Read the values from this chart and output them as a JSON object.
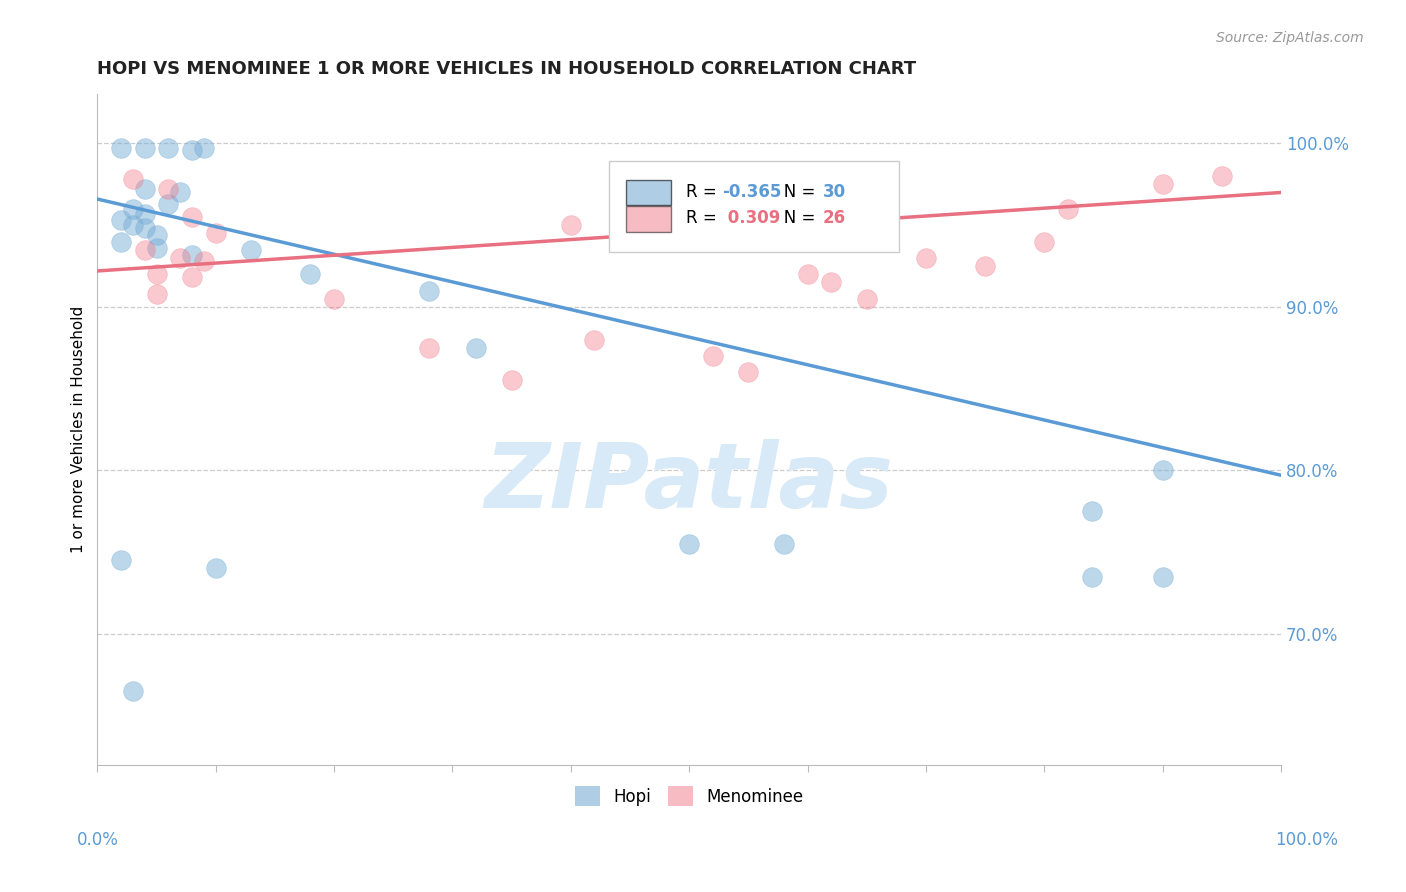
{
  "title": "HOPI VS MENOMINEE 1 OR MORE VEHICLES IN HOUSEHOLD CORRELATION CHART",
  "source": "Source: ZipAtlas.com",
  "ylabel": "1 or more Vehicles in Household",
  "ytick_values": [
    0.7,
    0.8,
    0.9,
    1.0
  ],
  "ytick_labels": [
    "70.0%",
    "80.0%",
    "90.0%",
    "100.0%"
  ],
  "hopi_R": -0.365,
  "hopi_N": 30,
  "menominee_R": 0.309,
  "menominee_N": 26,
  "hopi_color": "#7aaed6",
  "menominee_color": "#f07a88",
  "hopi_line_color": "#5b9bd5",
  "menominee_line_color": "#e87080",
  "axis_label_color": "#5b9bd5",
  "title_color": "#222222",
  "source_color": "#999999",
  "watermark_text": "ZIPatlas",
  "watermark_color": "#d8eaf7",
  "background_color": "#ffffff",
  "grid_color": "#cccccc",
  "xlim": [
    0.0,
    1.0
  ],
  "ylim": [
    0.62,
    1.03
  ],
  "hopi_scatter_x": [
    0.02,
    0.04,
    0.06,
    0.08,
    0.09,
    0.04,
    0.07,
    0.03,
    0.04,
    0.06,
    0.02,
    0.03,
    0.04,
    0.05,
    0.02,
    0.05,
    0.08,
    0.13,
    0.18,
    0.28,
    0.32,
    0.02,
    0.1,
    0.03,
    0.5,
    0.58,
    0.84,
    0.84,
    0.9,
    0.9
  ],
  "hopi_scatter_y": [
    0.997,
    0.997,
    0.997,
    0.996,
    0.997,
    0.972,
    0.97,
    0.96,
    0.957,
    0.963,
    0.953,
    0.95,
    0.948,
    0.944,
    0.94,
    0.936,
    0.932,
    0.935,
    0.92,
    0.91,
    0.875,
    0.745,
    0.74,
    0.665,
    0.755,
    0.755,
    0.775,
    0.735,
    0.735,
    0.8
  ],
  "menominee_scatter_x": [
    0.03,
    0.06,
    0.08,
    0.1,
    0.04,
    0.07,
    0.09,
    0.05,
    0.08,
    0.05,
    0.2,
    0.28,
    0.35,
    0.4,
    0.42,
    0.52,
    0.55,
    0.6,
    0.62,
    0.65,
    0.7,
    0.75,
    0.8,
    0.82,
    0.9,
    0.95
  ],
  "menominee_scatter_y": [
    0.978,
    0.972,
    0.955,
    0.945,
    0.935,
    0.93,
    0.928,
    0.92,
    0.918,
    0.908,
    0.905,
    0.875,
    0.855,
    0.95,
    0.88,
    0.87,
    0.86,
    0.92,
    0.915,
    0.905,
    0.93,
    0.925,
    0.94,
    0.96,
    0.975,
    0.98
  ],
  "hopi_line_x": [
    0.0,
    1.0
  ],
  "hopi_line_y": [
    0.966,
    0.797
  ],
  "menominee_line_x": [
    0.0,
    1.0
  ],
  "menominee_line_y": [
    0.922,
    0.97
  ]
}
